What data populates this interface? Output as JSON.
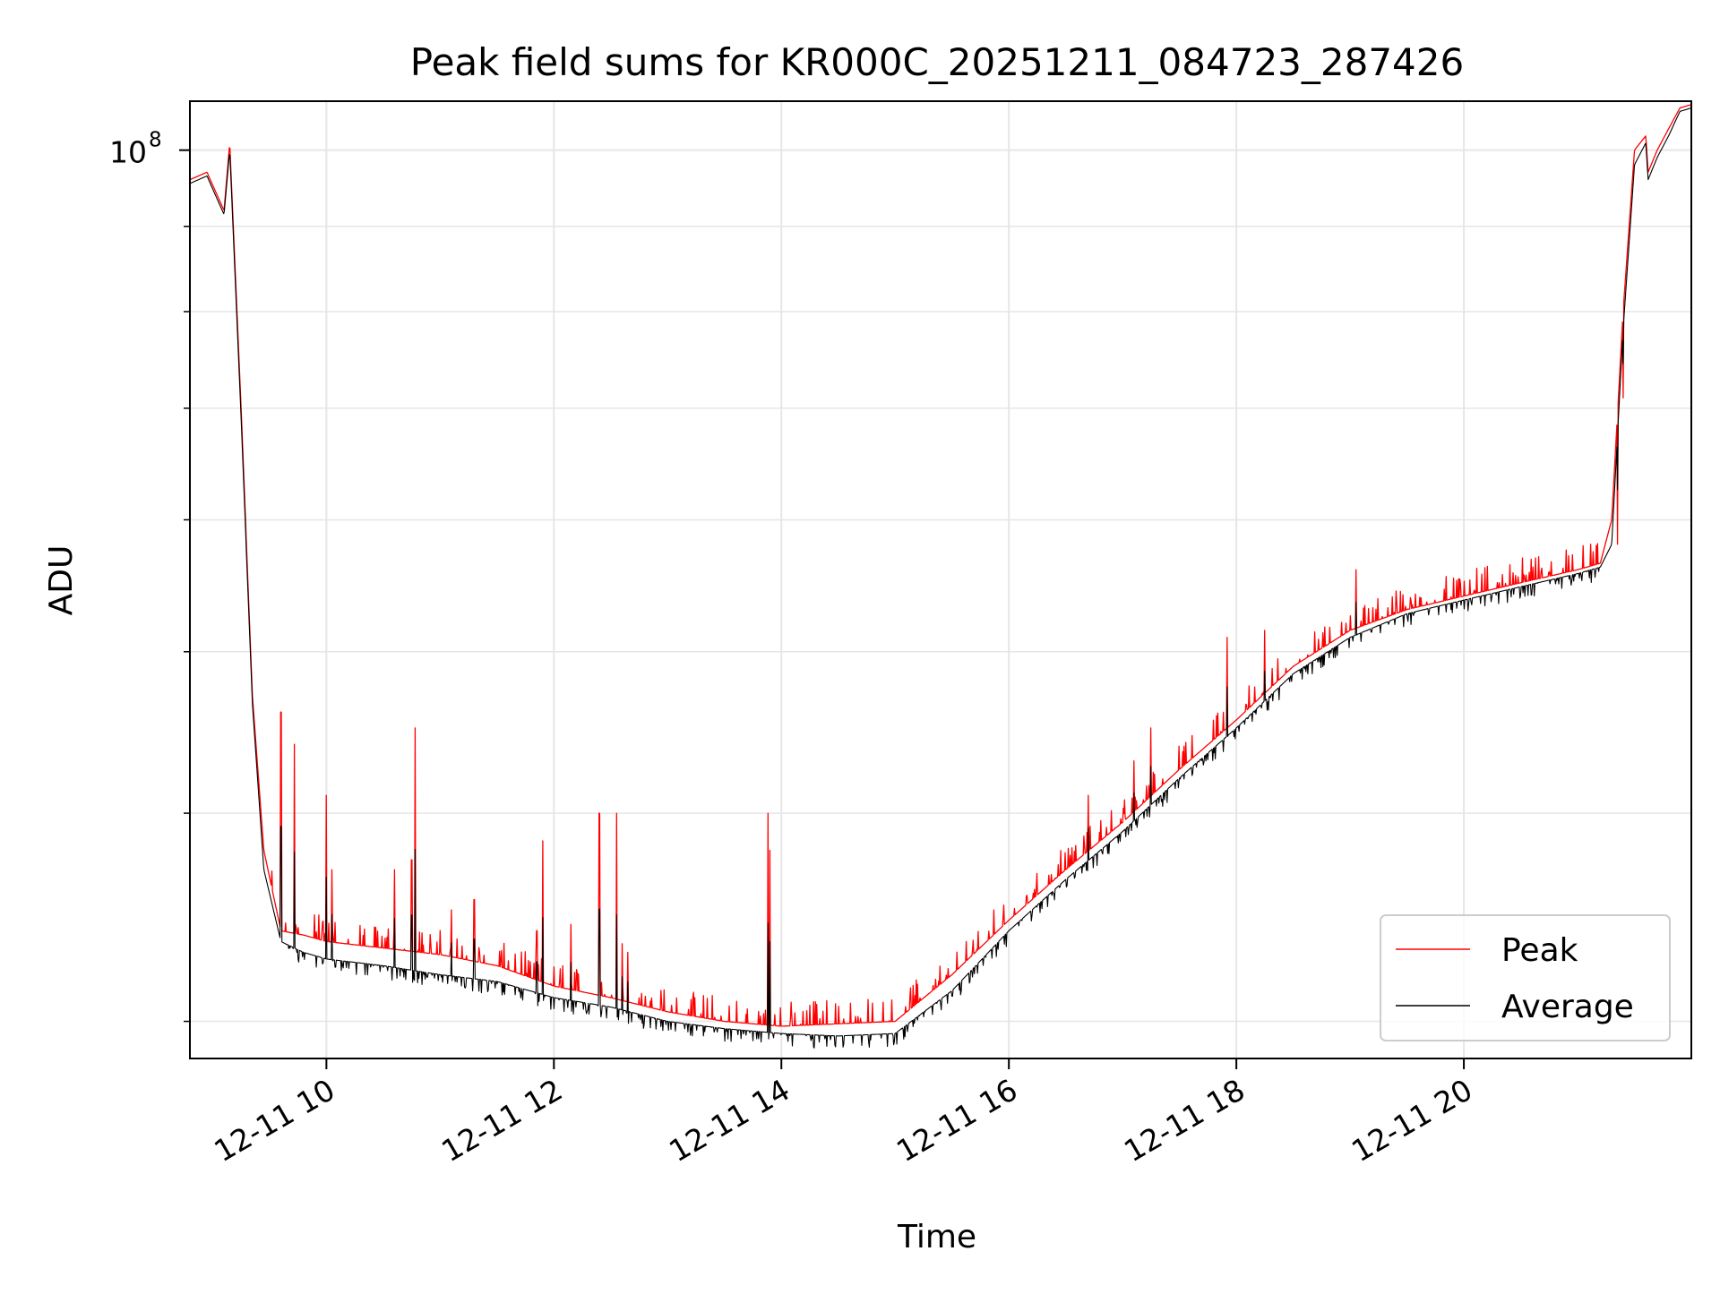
{
  "chart_data": {
    "type": "line",
    "title": "Peak field sums for KR000C_20251211_084723_287426",
    "xlabel": "Time",
    "ylabel": "ADU",
    "yscale": "log",
    "grid": true,
    "legend_position": "lower right",
    "xlim_hours": [
      8.8,
      22.0
    ],
    "ylim": [
      28500000,
      107000000
    ],
    "x_ticks": [
      {
        "label": "12-11 10",
        "hour": 10
      },
      {
        "label": "12-11 12",
        "hour": 12
      },
      {
        "label": "12-11 14",
        "hour": 14
      },
      {
        "label": "12-11 16",
        "hour": 16
      },
      {
        "label": "12-11 18",
        "hour": 18
      },
      {
        "label": "12-11 20",
        "hour": 20
      }
    ],
    "y_major_ticks": [
      {
        "label_base": "10",
        "label_exp": "8",
        "value": 100000000
      }
    ],
    "y_minor_ticks": [
      30000000,
      40000000,
      50000000,
      60000000,
      70000000,
      80000000,
      90000000
    ],
    "colors": {
      "peak": "#ff0000",
      "average": "#000000",
      "grid": "#e6e6e6"
    },
    "series": [
      {
        "name": "Peak",
        "color": "#ff0000",
        "x": [
          8.8,
          8.95,
          9.1,
          9.15,
          9.25,
          9.35,
          9.45,
          9.6,
          9.8,
          10.0,
          10.5,
          11.0,
          11.5,
          12.0,
          12.5,
          13.0,
          13.5,
          14.0,
          14.5,
          15.0,
          15.5,
          16.0,
          16.5,
          17.0,
          17.5,
          18.0,
          18.5,
          19.0,
          19.5,
          20.0,
          20.5,
          21.0,
          21.2,
          21.3,
          21.4,
          21.5,
          21.6,
          21.62,
          21.7,
          21.8,
          21.9,
          22.0
        ],
        "y": [
          96000000,
          97000000,
          92000000,
          101000000,
          70000000,
          47000000,
          38000000,
          34000000,
          33800000,
          33500000,
          33200000,
          32900000,
          32400000,
          31500000,
          31000000,
          30400000,
          30000000,
          29800000,
          29900000,
          30000000,
          32000000,
          34500000,
          37000000,
          39500000,
          42500000,
          45500000,
          49000000,
          51500000,
          53000000,
          54000000,
          55000000,
          56000000,
          56500000,
          60000000,
          80000000,
          100000000,
          102000000,
          97000000,
          100000000,
          103000000,
          106000000,
          106500000
        ]
      },
      {
        "name": "Average",
        "color": "#000000",
        "x": [
          8.8,
          8.95,
          9.1,
          9.15,
          9.25,
          9.35,
          9.45,
          9.6,
          9.8,
          10.0,
          10.5,
          11.0,
          11.5,
          12.0,
          12.5,
          13.0,
          13.5,
          14.0,
          14.5,
          15.0,
          15.5,
          16.0,
          16.5,
          17.0,
          17.5,
          18.0,
          18.5,
          19.0,
          19.5,
          20.0,
          20.5,
          21.0,
          21.2,
          21.3,
          21.4,
          21.5,
          21.6,
          21.62,
          21.7,
          21.8,
          21.9,
          22.0
        ],
        "y": [
          95500000,
          96500000,
          91500000,
          100000000,
          69000000,
          46500000,
          37000000,
          33500000,
          33000000,
          32700000,
          32400000,
          32000000,
          31700000,
          31000000,
          30600000,
          30000000,
          29700000,
          29500000,
          29400000,
          29500000,
          31300000,
          34000000,
          36500000,
          39000000,
          42000000,
          45000000,
          48500000,
          51000000,
          52700000,
          53700000,
          54700000,
          55700000,
          56200000,
          58000000,
          78000000,
          98000000,
          101000000,
          96000000,
          99000000,
          102000000,
          105500000,
          106000000
        ]
      }
    ],
    "spikes": [
      {
        "x": 9.6,
        "y": 46000000
      },
      {
        "x": 9.72,
        "y": 44000000
      },
      {
        "x": 10.0,
        "y": 41000000
      },
      {
        "x": 10.05,
        "y": 37000000
      },
      {
        "x": 10.6,
        "y": 37000000
      },
      {
        "x": 10.75,
        "y": 37500000
      },
      {
        "x": 10.78,
        "y": 45000000
      },
      {
        "x": 11.1,
        "y": 35000000
      },
      {
        "x": 11.3,
        "y": 35500000
      },
      {
        "x": 11.85,
        "y": 34000000
      },
      {
        "x": 11.9,
        "y": 38500000
      },
      {
        "x": 12.15,
        "y": 34300000
      },
      {
        "x": 12.4,
        "y": 40000000
      },
      {
        "x": 12.55,
        "y": 40000000
      },
      {
        "x": 12.6,
        "y": 33400000
      },
      {
        "x": 12.65,
        "y": 33000000
      },
      {
        "x": 13.88,
        "y": 40000000
      },
      {
        "x": 13.9,
        "y": 38000000
      },
      {
        "x": 17.25,
        "y": 45000000
      },
      {
        "x": 17.1,
        "y": 43000000
      },
      {
        "x": 16.7,
        "y": 41000000
      },
      {
        "x": 17.92,
        "y": 51000000
      },
      {
        "x": 18.25,
        "y": 51500000
      },
      {
        "x": 19.05,
        "y": 56000000
      },
      {
        "x": 21.35,
        "y": 58000000
      },
      {
        "x": 21.4,
        "y": 71000000
      }
    ],
    "legend": [
      {
        "label": "Peak",
        "color": "#ff0000"
      },
      {
        "label": "Average",
        "color": "#000000"
      }
    ]
  }
}
